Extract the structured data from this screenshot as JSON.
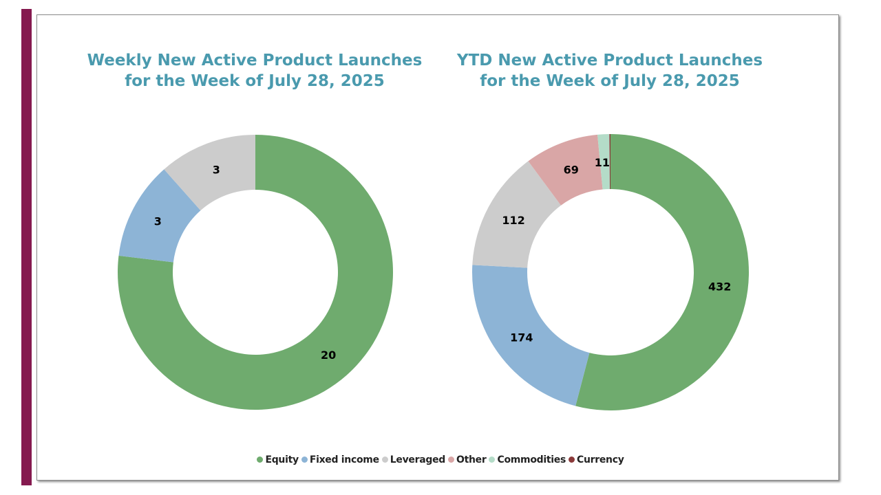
{
  "colors": {
    "Equity": "#6fab6e",
    "Fixed income": "#8db4d6",
    "Leveraged": "#cccccc",
    "Other": "#d9a6a6",
    "Commodities": "#b4dcc8",
    "Currency": "#8b3a3a"
  },
  "legend": [
    {
      "name": "Equity"
    },
    {
      "name": "Fixed income"
    },
    {
      "name": "Leveraged"
    },
    {
      "name": "Other"
    },
    {
      "name": "Commodities"
    },
    {
      "name": "Currency"
    }
  ],
  "chart_data": [
    {
      "type": "pie",
      "variant": "donut",
      "title": "Weekly New Active Product Launches\nfor the Week of July 28, 2025",
      "title_line1": "Weekly New Active Product Launches",
      "title_line2": "for the Week of July 28, 2025",
      "categories": [
        "Equity",
        "Fixed income",
        "Leveraged"
      ],
      "values": [
        20,
        3,
        3
      ],
      "data_labels": [
        "20",
        "3",
        "3"
      ],
      "legend_position": "bottom"
    },
    {
      "type": "pie",
      "variant": "donut",
      "title": "YTD New Active Product Launches\nfor the Week of July 28, 2025",
      "title_line1": "YTD New Active Product Launches",
      "title_line2": "for the Week of July 28, 2025",
      "categories": [
        "Equity",
        "Fixed income",
        "Leveraged",
        "Other",
        "Commodities",
        "Currency"
      ],
      "values": [
        432,
        174,
        112,
        69,
        11,
        1
      ],
      "data_labels": [
        "432",
        "174",
        "112",
        "69",
        "11",
        ""
      ],
      "legend_position": "bottom"
    }
  ]
}
